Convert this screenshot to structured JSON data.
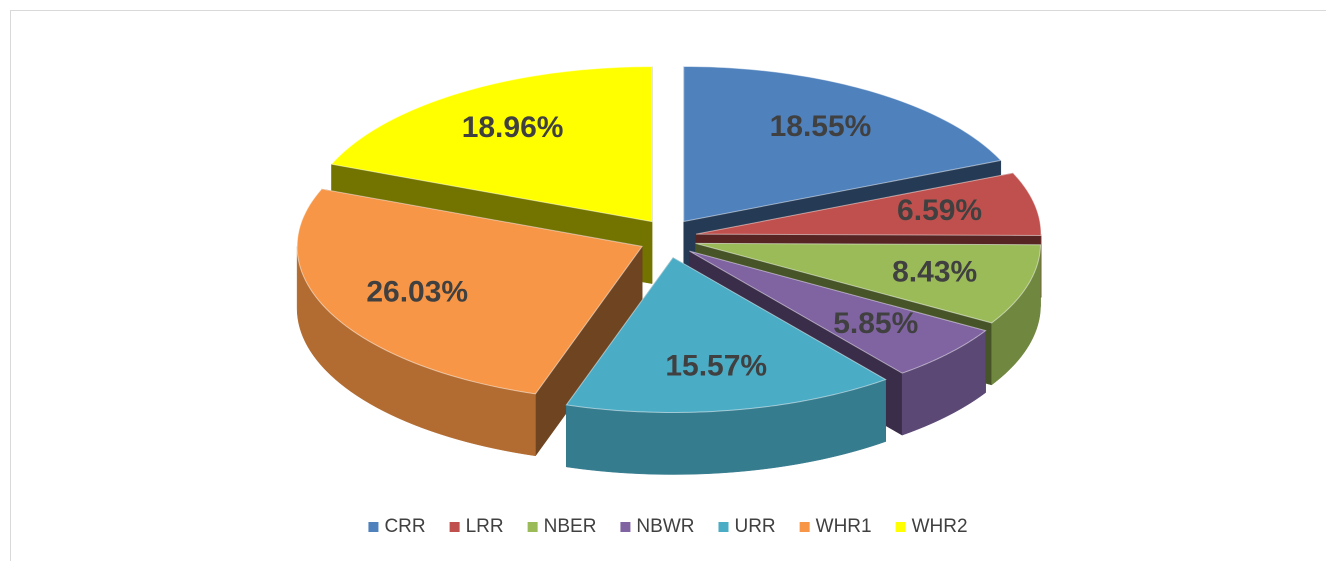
{
  "chart_data": {
    "type": "pie",
    "categories": [
      "CRR",
      "LRR",
      "NBER",
      "NBWR",
      "URR",
      "WHR1",
      "WHR2"
    ],
    "values": [
      18.55,
      6.59,
      8.43,
      5.85,
      15.57,
      26.03,
      18.96
    ],
    "value_labels": [
      "18.55%",
      "6.59%",
      "8.43%",
      "5.85%",
      "15.57%",
      "26.03%",
      "18.96%"
    ],
    "colors": [
      "#4f81bd",
      "#c0504d",
      "#9bbb59",
      "#8064a2",
      "#4bacc6",
      "#f79646",
      "#ffff00"
    ],
    "legend": "bottom"
  }
}
